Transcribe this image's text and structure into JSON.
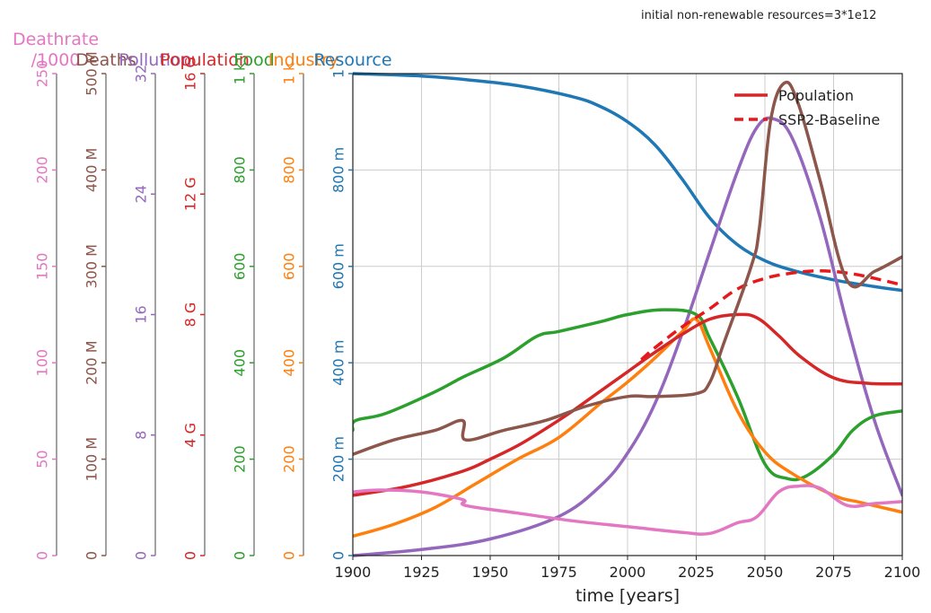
{
  "chart_data": {
    "type": "line",
    "annotation": "initial non-renewable resources=3*1e12",
    "xlabel": "time [years]",
    "xlim": [
      1900,
      2100
    ],
    "x_ticks": [
      "1900",
      "1925",
      "1950",
      "1975",
      "2000",
      "2025",
      "2050",
      "2075",
      "2100"
    ],
    "axes": [
      {
        "id": "deathrate",
        "label": "Deathrate\n/1000",
        "label_lines": [
          "Deathrate",
          "/1000"
        ],
        "color": "#e377c2",
        "max": 250,
        "ticks": [
          {
            "v": 0,
            "t": "0"
          },
          {
            "v": 50,
            "t": "50"
          },
          {
            "v": 100,
            "t": "100"
          },
          {
            "v": 150,
            "t": "150"
          },
          {
            "v": 200,
            "t": "200"
          },
          {
            "v": 250,
            "t": "250"
          }
        ]
      },
      {
        "id": "deaths",
        "label": "Deaths",
        "color": "#8c564b",
        "max": 500,
        "ticks": [
          {
            "v": 0,
            "t": "0"
          },
          {
            "v": 100,
            "t": "100 M"
          },
          {
            "v": 200,
            "t": "200 M"
          },
          {
            "v": 300,
            "t": "300 M"
          },
          {
            "v": 400,
            "t": "400 M"
          },
          {
            "v": 500,
            "t": "500 M"
          }
        ]
      },
      {
        "id": "pollution",
        "label": "Pollution",
        "color": "#9467bd",
        "max": 32,
        "ticks": [
          {
            "v": 0,
            "t": "0"
          },
          {
            "v": 8,
            "t": "8"
          },
          {
            "v": 16,
            "t": "16"
          },
          {
            "v": 24,
            "t": "24"
          },
          {
            "v": 32,
            "t": "32"
          }
        ]
      },
      {
        "id": "population",
        "label": "Population",
        "color": "#d62728",
        "max": 16,
        "ticks": [
          {
            "v": 0,
            "t": "0"
          },
          {
            "v": 4,
            "t": "4 G"
          },
          {
            "v": 8,
            "t": "8 G"
          },
          {
            "v": 12,
            "t": "12 G"
          },
          {
            "v": 16,
            "t": "16 G"
          }
        ]
      },
      {
        "id": "food",
        "label": "Food",
        "color": "#2ca02c",
        "max": 1000,
        "ticks": [
          {
            "v": 0,
            "t": "0"
          },
          {
            "v": 200,
            "t": "200"
          },
          {
            "v": 400,
            "t": "400"
          },
          {
            "v": 600,
            "t": "600"
          },
          {
            "v": 800,
            "t": "800"
          },
          {
            "v": 1000,
            "t": "1 k"
          }
        ]
      },
      {
        "id": "industry",
        "label": "Industry",
        "color": "#ff7f0e",
        "max": 1000,
        "ticks": [
          {
            "v": 0,
            "t": "0"
          },
          {
            "v": 200,
            "t": "200"
          },
          {
            "v": 400,
            "t": "400"
          },
          {
            "v": 600,
            "t": "600"
          },
          {
            "v": 800,
            "t": "800"
          },
          {
            "v": 1000,
            "t": "1 k"
          }
        ]
      },
      {
        "id": "resource",
        "label": "Resource",
        "color": "#1f77b4",
        "max": 1,
        "ticks": [
          {
            "v": 0,
            "t": "0"
          },
          {
            "v": 0.2,
            "t": "200 m"
          },
          {
            "v": 0.4,
            "t": "400 m"
          },
          {
            "v": 0.6,
            "t": "600 m"
          },
          {
            "v": 0.8,
            "t": "800 m"
          },
          {
            "v": 1,
            "t": "1"
          }
        ]
      }
    ],
    "series": [
      {
        "name": "Resource",
        "axis": "resource",
        "color": "#1f77b4",
        "dashed": false,
        "x": [
          1900,
          1925,
          1940,
          1960,
          1980,
          1990,
          2000,
          2010,
          2020,
          2030,
          2040,
          2050,
          2060,
          2075,
          2090,
          2100
        ],
        "y": [
          1.0,
          0.995,
          0.988,
          0.975,
          0.952,
          0.932,
          0.9,
          0.852,
          0.78,
          0.7,
          0.645,
          0.612,
          0.592,
          0.572,
          0.558,
          0.55
        ]
      },
      {
        "name": "Pollution",
        "axis": "pollution",
        "color": "#9467bd",
        "dashed": false,
        "x": [
          1900,
          1925,
          1950,
          1975,
          1990,
          2000,
          2010,
          2020,
          2030,
          2040,
          2047,
          2053,
          2060,
          2070,
          2080,
          2090,
          2100
        ],
        "y": [
          0.0,
          0.4,
          1.1,
          2.6,
          4.6,
          6.8,
          10.1,
          14.8,
          20.2,
          25.5,
          28.4,
          29.0,
          27.7,
          22.5,
          15.3,
          8.9,
          4.0
        ]
      },
      {
        "name": "Food",
        "axis": "food",
        "color": "#2ca02c",
        "dashed": false,
        "x": [
          1900,
          1901,
          1912,
          1930,
          1940,
          1955,
          1967,
          1975,
          1990,
          2000,
          2013,
          2025,
          2030,
          2040,
          2050,
          2058,
          2065,
          2075,
          2082,
          2090,
          2100
        ],
        "y": [
          260,
          280,
          295,
          340,
          370,
          410,
          455,
          465,
          485,
          500,
          510,
          500,
          450,
          330,
          190,
          160,
          165,
          210,
          260,
          290,
          300
        ]
      },
      {
        "name": "Industry",
        "axis": "industry",
        "color": "#ff7f0e",
        "dashed": false,
        "x": [
          1900,
          1915,
          1930,
          1945,
          1960,
          1975,
          1990,
          2000,
          2010,
          2020,
          2025,
          2030,
          2040,
          2050,
          2060,
          2075,
          2085,
          2100
        ],
        "y": [
          40,
          65,
          100,
          150,
          200,
          245,
          315,
          360,
          410,
          465,
          490,
          430,
          300,
          215,
          170,
          125,
          110,
          90
        ]
      },
      {
        "name": "Population",
        "axis": "population",
        "color": "#d62728",
        "dashed": false,
        "x": [
          1900,
          1920,
          1940,
          1950,
          1960,
          1970,
          1980,
          1990,
          2000,
          2010,
          2020,
          2030,
          2040,
          2047,
          2055,
          2063,
          2075,
          2087,
          2100
        ],
        "y": [
          2.0,
          2.3,
          2.8,
          3.2,
          3.65,
          4.2,
          4.8,
          5.45,
          6.1,
          6.75,
          7.35,
          7.85,
          8.0,
          7.9,
          7.3,
          6.6,
          5.9,
          5.72,
          5.7
        ]
      },
      {
        "name": "SSP2-Baseline",
        "axis": "population",
        "color": "#e8171b",
        "dashed": true,
        "x": [
          2005,
          2010,
          2020,
          2030,
          2040,
          2050,
          2060,
          2070,
          2080,
          2090,
          2100
        ],
        "y": [
          6.5,
          6.9,
          7.6,
          8.2,
          8.85,
          9.2,
          9.38,
          9.45,
          9.38,
          9.2,
          8.98
        ]
      },
      {
        "name": "Deaths",
        "axis": "deaths",
        "color": "#8c564b",
        "dashed": false,
        "x": [
          1900,
          1915,
          1930,
          1940,
          1941,
          1955,
          1970,
          1985,
          2000,
          2010,
          2025,
          2030,
          2035,
          2045,
          2048,
          2052,
          2057,
          2062,
          2070,
          2080,
          2090,
          2100
        ],
        "y": [
          105,
          120,
          130,
          140,
          120,
          130,
          140,
          155,
          165,
          165,
          168,
          180,
          220,
          300,
          340,
          450,
          490,
          470,
          390,
          285,
          295,
          310
        ]
      },
      {
        "name": "Deathrate",
        "axis": "deathrate",
        "color": "#e377c2",
        "dashed": false,
        "x": [
          1900,
          1910,
          1925,
          1940,
          1941,
          1960,
          1980,
          2000,
          2020,
          2030,
          2040,
          2047,
          2055,
          2062,
          2070,
          2080,
          2090,
          2100
        ],
        "y": [
          33,
          34,
          33,
          29,
          26,
          22,
          18,
          15,
          12,
          11.5,
          17,
          20,
          33,
          36,
          35,
          26,
          27,
          28
        ]
      }
    ],
    "legend": {
      "position": "top-right",
      "entries": [
        {
          "label": "Population",
          "color": "#d62728",
          "dashed": false
        },
        {
          "label": "SSP2-Baseline",
          "color": "#e8171b",
          "dashed": true
        }
      ]
    }
  }
}
